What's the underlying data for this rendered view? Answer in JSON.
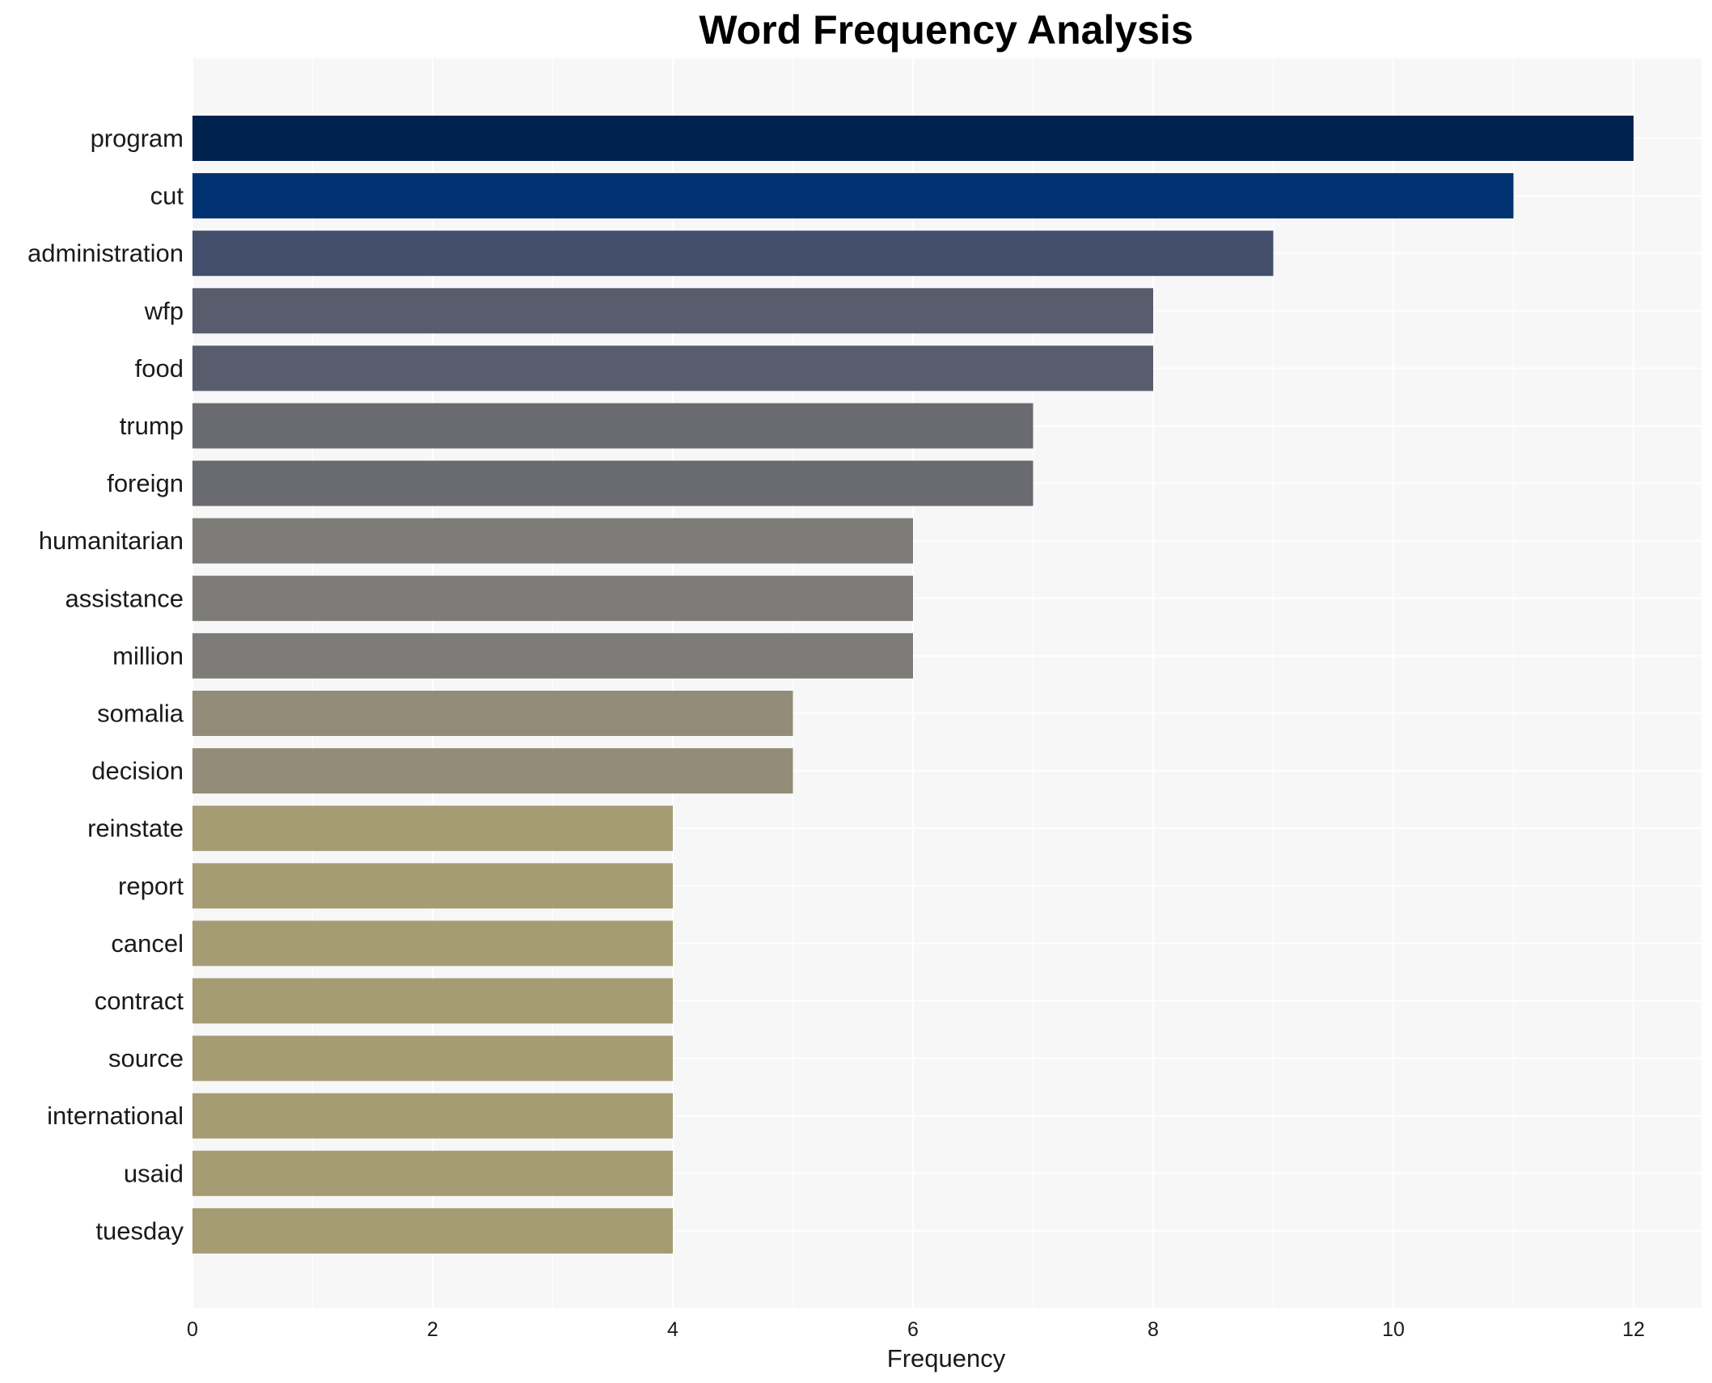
{
  "chart_data": {
    "type": "bar",
    "orientation": "horizontal",
    "title": "Word Frequency Analysis",
    "xlabel": "Frequency",
    "ylabel": "",
    "xlim": [
      0,
      12.6
    ],
    "x_ticks": [
      0,
      2,
      4,
      6,
      8,
      10,
      12
    ],
    "grid": true,
    "legend": "none",
    "categories": [
      "program",
      "cut",
      "administration",
      "wfp",
      "food",
      "trump",
      "foreign",
      "humanitarian",
      "assistance",
      "million",
      "somalia",
      "decision",
      "reinstate",
      "report",
      "cancel",
      "contract",
      "source",
      "international",
      "usaid",
      "tuesday"
    ],
    "values": [
      12,
      11,
      9,
      8,
      8,
      7,
      7,
      6,
      6,
      6,
      5,
      5,
      4,
      4,
      4,
      4,
      4,
      4,
      4,
      4
    ],
    "colors": [
      "#00224e",
      "#003170",
      "#434e6c",
      "#575d6d",
      "#575d6d",
      "#6a6b70",
      "#6a6b70",
      "#7d7c78",
      "#7d7c78",
      "#7d7c78",
      "#938c78",
      "#938c78",
      "#a59c74",
      "#a59c74",
      "#a59c74",
      "#a59c74",
      "#a59c74",
      "#a59c74",
      "#a59c74",
      "#a59c74"
    ],
    "background_color": "#f7f7f7",
    "grid_color": "#ffffff"
  }
}
